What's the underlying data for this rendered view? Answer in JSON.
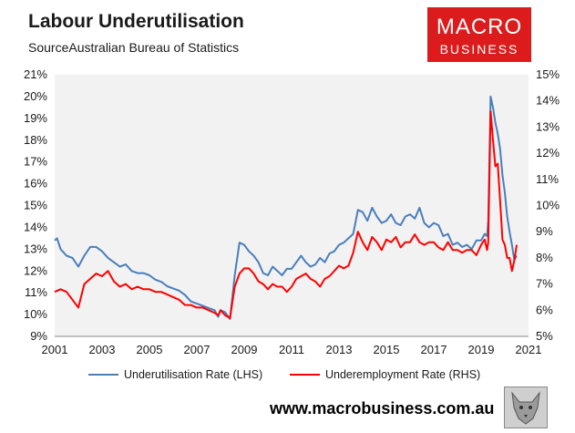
{
  "header": {
    "title": "Labour Underutilisation",
    "source": "SourceAustralian Bureau of Statistics"
  },
  "logo": {
    "line1": "MACRO",
    "line2": "BUSINESS",
    "color": "#dc1c1c"
  },
  "footer": {
    "url": "www.macrobusiness.com.au",
    "mascot_icon": "wolf-icon"
  },
  "chart_data": {
    "type": "line",
    "title": "Labour Underutilisation",
    "x_ticks": [
      "2001",
      "2003",
      "2005",
      "2007",
      "2009",
      "2011",
      "2013",
      "2015",
      "2017",
      "2019",
      "2021"
    ],
    "xlim": [
      2001,
      2021
    ],
    "y_left": {
      "ticks": [
        "9%",
        "10%",
        "11%",
        "12%",
        "13%",
        "14%",
        "15%",
        "16%",
        "17%",
        "18%",
        "19%",
        "20%",
        "21%"
      ],
      "lim": [
        9,
        21
      ]
    },
    "y_right": {
      "ticks": [
        "5%",
        "6%",
        "7%",
        "8%",
        "9%",
        "10%",
        "11%",
        "12%",
        "13%",
        "14%",
        "15%"
      ],
      "lim": [
        5,
        15
      ]
    },
    "grid": false,
    "legend_placement": "bottom",
    "series": [
      {
        "name": "Underutilisation Rate (LHS)",
        "axis": "left",
        "color": "#4a7ebb",
        "x": [
          2001.0,
          2001.1,
          2001.25,
          2001.5,
          2001.75,
          2002.0,
          2002.25,
          2002.5,
          2002.75,
          2003.0,
          2003.25,
          2003.5,
          2003.75,
          2004.0,
          2004.25,
          2004.5,
          2004.75,
          2005.0,
          2005.25,
          2005.5,
          2005.75,
          2006.0,
          2006.25,
          2006.5,
          2006.75,
          2007.0,
          2007.25,
          2007.5,
          2007.75,
          2007.9,
          2008.0,
          2008.2,
          2008.4,
          2008.6,
          2008.8,
          2009.0,
          2009.2,
          2009.4,
          2009.6,
          2009.8,
          2010.0,
          2010.2,
          2010.4,
          2010.6,
          2010.8,
          2011.0,
          2011.2,
          2011.4,
          2011.6,
          2011.8,
          2012.0,
          2012.2,
          2012.4,
          2012.6,
          2012.8,
          2013.0,
          2013.2,
          2013.4,
          2013.6,
          2013.8,
          2014.0,
          2014.2,
          2014.4,
          2014.6,
          2014.8,
          2015.0,
          2015.2,
          2015.4,
          2015.6,
          2015.8,
          2016.0,
          2016.2,
          2016.4,
          2016.6,
          2016.8,
          2017.0,
          2017.2,
          2017.4,
          2017.6,
          2017.8,
          2018.0,
          2018.2,
          2018.4,
          2018.6,
          2018.8,
          2019.0,
          2019.15,
          2019.25,
          2019.3,
          2019.4,
          2019.5,
          2019.6,
          2019.7,
          2019.8,
          2019.9,
          2020.0,
          2020.1,
          2020.2,
          2020.3,
          2020.4,
          2020.5
        ],
        "values": [
          13.4,
          13.5,
          13.0,
          12.7,
          12.6,
          12.2,
          12.7,
          13.1,
          13.1,
          12.9,
          12.6,
          12.4,
          12.2,
          12.3,
          12.0,
          11.9,
          11.9,
          11.8,
          11.6,
          11.5,
          11.3,
          11.2,
          11.1,
          10.9,
          10.6,
          10.5,
          10.4,
          10.3,
          10.2,
          9.9,
          10.2,
          10.1,
          9.8,
          11.8,
          13.3,
          13.2,
          12.9,
          12.7,
          12.4,
          11.9,
          11.8,
          12.2,
          12.0,
          11.8,
          12.1,
          12.1,
          12.4,
          12.7,
          12.4,
          12.2,
          12.3,
          12.6,
          12.4,
          12.8,
          12.9,
          13.2,
          13.3,
          13.5,
          13.7,
          14.8,
          14.7,
          14.3,
          14.9,
          14.5,
          14.2,
          14.3,
          14.6,
          14.2,
          14.1,
          14.5,
          14.6,
          14.4,
          14.9,
          14.2,
          14.0,
          14.2,
          14.1,
          13.6,
          13.7,
          13.2,
          13.3,
          13.1,
          13.2,
          13.0,
          13.4,
          13.4,
          13.7,
          13.6,
          14.3,
          20.0,
          19.5,
          18.8,
          18.3,
          17.6,
          16.4,
          15.6,
          14.5,
          13.8,
          13.2,
          12.5,
          12.7
        ]
      },
      {
        "name": "Underemployment Rate (RHS)",
        "axis": "right",
        "color": "#ff0000",
        "x": [
          2001.0,
          2001.25,
          2001.5,
          2001.75,
          2002.0,
          2002.25,
          2002.5,
          2002.75,
          2003.0,
          2003.25,
          2003.5,
          2003.75,
          2004.0,
          2004.25,
          2004.5,
          2004.75,
          2005.0,
          2005.25,
          2005.5,
          2005.75,
          2006.0,
          2006.25,
          2006.5,
          2006.75,
          2007.0,
          2007.25,
          2007.5,
          2007.75,
          2007.9,
          2008.0,
          2008.2,
          2008.4,
          2008.6,
          2008.8,
          2009.0,
          2009.2,
          2009.4,
          2009.6,
          2009.8,
          2010.0,
          2010.2,
          2010.4,
          2010.6,
          2010.8,
          2011.0,
          2011.2,
          2011.4,
          2011.6,
          2011.8,
          2012.0,
          2012.2,
          2012.4,
          2012.6,
          2012.8,
          2013.0,
          2013.2,
          2013.4,
          2013.6,
          2013.8,
          2014.0,
          2014.2,
          2014.4,
          2014.6,
          2014.8,
          2015.0,
          2015.2,
          2015.4,
          2015.6,
          2015.8,
          2016.0,
          2016.2,
          2016.4,
          2016.6,
          2016.8,
          2017.0,
          2017.2,
          2017.4,
          2017.6,
          2017.8,
          2018.0,
          2018.2,
          2018.4,
          2018.6,
          2018.8,
          2019.0,
          2019.15,
          2019.25,
          2019.3,
          2019.4,
          2019.5,
          2019.6,
          2019.7,
          2019.8,
          2019.9,
          2020.0,
          2020.1,
          2020.2,
          2020.3,
          2020.4,
          2020.5
        ],
        "values": [
          6.7,
          6.8,
          6.7,
          6.4,
          6.1,
          7.0,
          7.2,
          7.4,
          7.3,
          7.5,
          7.1,
          6.9,
          7.0,
          6.8,
          6.9,
          6.8,
          6.8,
          6.7,
          6.7,
          6.6,
          6.5,
          6.4,
          6.2,
          6.2,
          6.1,
          6.1,
          6.0,
          5.9,
          5.8,
          6.0,
          5.8,
          5.7,
          6.9,
          7.4,
          7.6,
          7.6,
          7.4,
          7.1,
          7.0,
          6.8,
          7.0,
          6.9,
          6.9,
          6.7,
          6.9,
          7.2,
          7.3,
          7.4,
          7.2,
          7.1,
          6.9,
          7.2,
          7.3,
          7.5,
          7.7,
          7.6,
          7.7,
          8.2,
          9.0,
          8.6,
          8.3,
          8.8,
          8.6,
          8.3,
          8.7,
          8.6,
          8.8,
          8.4,
          8.6,
          8.6,
          8.9,
          8.6,
          8.5,
          8.6,
          8.6,
          8.4,
          8.3,
          8.6,
          8.3,
          8.3,
          8.2,
          8.3,
          8.3,
          8.1,
          8.5,
          8.7,
          8.3,
          8.6,
          13.6,
          12.5,
          11.5,
          11.6,
          10.2,
          8.7,
          8.5,
          8.0,
          8.0,
          7.5,
          7.9,
          8.5
        ]
      }
    ]
  }
}
